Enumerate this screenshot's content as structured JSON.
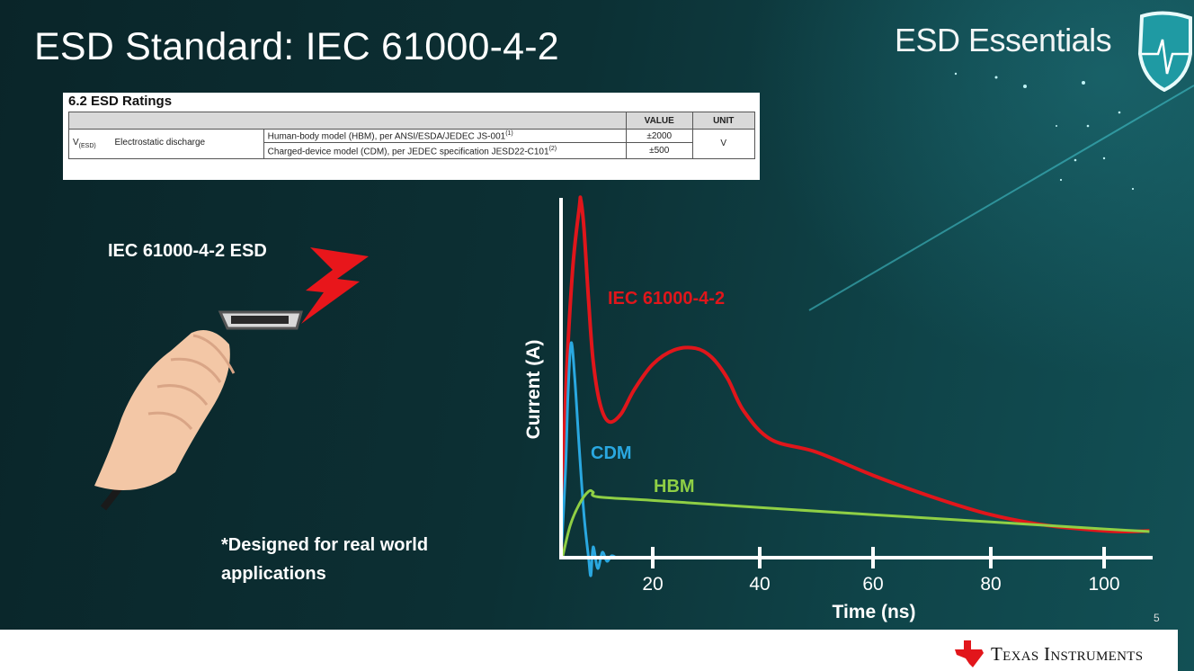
{
  "slide": {
    "title": "ESD Standard: IEC 61000-4-2",
    "brand": "ESD Essentials",
    "page_number": "5",
    "footer_company": "Texas Instruments",
    "left_heading": "IEC 61000-4-2 ESD",
    "note_line1": "*Designed for real world",
    "note_line2": "applications"
  },
  "datasheet_table": {
    "section_title": "6.2   ESD Ratings",
    "headers": {
      "value": "VALUE",
      "unit": "UNIT"
    },
    "symbol": "V",
    "symbol_sub": "(ESD)",
    "parameter": "Electrostatic discharge",
    "rows": [
      {
        "condition": "Human-body model (HBM), per ANSI/ESDA/JEDEC JS-001",
        "footnote": "(1)",
        "value": "±2000"
      },
      {
        "condition": "Charged-device model (CDM), per JEDEC specification JESD22-C101",
        "footnote": "(2)",
        "value": "±500"
      }
    ],
    "unit": "V"
  },
  "chart_data": {
    "type": "line",
    "title": "",
    "xlabel": "Time (ns)",
    "ylabel": "Current (A)",
    "xticks": [
      20,
      40,
      60,
      80,
      100
    ],
    "xlim": [
      0,
      108
    ],
    "ylim": [
      0,
      100
    ],
    "y_tick_labels": "none",
    "grid": false,
    "legend": "inline labels",
    "series": [
      {
        "name": "IEC 61000-4-2",
        "color": "#e0161b",
        "x": [
          0,
          1,
          2.5,
          4,
          4.3,
          5,
          6,
          7,
          8.5,
          10.4,
          13,
          16,
          20,
          24,
          28,
          31,
          34,
          37,
          42,
          50,
          60,
          70,
          80,
          90,
          100,
          104,
          108
        ],
        "y": [
          0,
          45,
          80,
          98,
          100,
          92,
          72,
          55,
          43,
          38,
          40,
          47,
          54,
          58,
          58.5,
          56,
          50,
          41,
          33,
          29.5,
          23,
          17,
          12,
          9,
          7.5,
          7.3,
          7.5
        ]
      },
      {
        "name": "CDM",
        "color": "#2aa8e0",
        "x": [
          0,
          1,
          1.5,
          2.2,
          3,
          4,
          5,
          6,
          6.5,
          7,
          8,
          9,
          10,
          11,
          12
        ],
        "y": [
          0,
          25,
          45,
          60,
          50,
          30,
          12,
          0,
          -5,
          3,
          -3,
          1.5,
          -1,
          0.5,
          0
        ]
      },
      {
        "name": "HBM",
        "color": "#8fcf45",
        "x": [
          0.3,
          2,
          4,
          6,
          7,
          8,
          20,
          40,
          60,
          80,
          100,
          108
        ],
        "y": [
          0,
          9,
          15,
          18.5,
          18.3,
          17,
          16,
          14,
          12,
          10,
          8,
          7.3
        ]
      }
    ]
  }
}
